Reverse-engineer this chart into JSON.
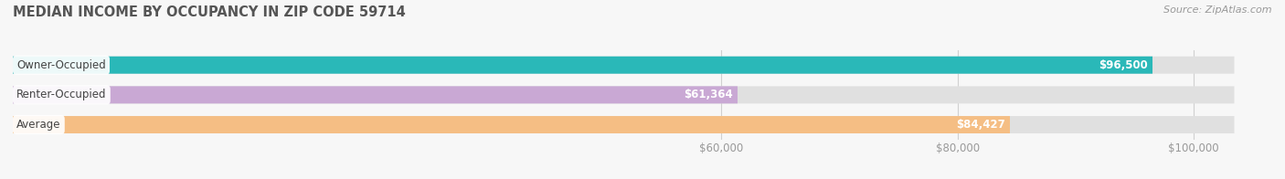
{
  "title": "MEDIAN INCOME BY OCCUPANCY IN ZIP CODE 59714",
  "source": "Source: ZipAtlas.com",
  "categories": [
    "Owner-Occupied",
    "Renter-Occupied",
    "Average"
  ],
  "values": [
    96500,
    61364,
    84427
  ],
  "labels": [
    "$96,500",
    "$61,364",
    "$84,427"
  ],
  "bar_colors": [
    "#2ab8b8",
    "#c9a8d4",
    "#f5be84"
  ],
  "bar_bg_color": "#e0e0e0",
  "xlim_max": 105000,
  "xticks": [
    60000,
    80000,
    100000
  ],
  "xtick_labels": [
    "$60,000",
    "$80,000",
    "$100,000"
  ],
  "bar_height": 0.58,
  "title_fontsize": 10.5,
  "label_fontsize": 8.5,
  "tick_fontsize": 8.5,
  "source_fontsize": 8,
  "bg_color": "#f7f7f7",
  "label_color_inside": "#ffffff",
  "title_color": "#555555",
  "tick_color": "#999999",
  "grid_color": "#d0d0d0"
}
